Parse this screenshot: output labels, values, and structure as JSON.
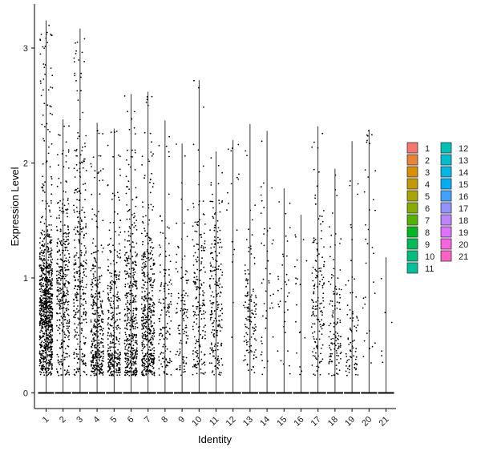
{
  "chart_data": {
    "type": "violin-jitter",
    "xlabel": "Identity",
    "ylabel": "Expression Level",
    "ylim": [
      -0.15,
      3.35
    ],
    "yticks": [
      0,
      1,
      2,
      3
    ],
    "grid": false,
    "legend_position": "right",
    "categories": [
      "1",
      "2",
      "3",
      "4",
      "5",
      "6",
      "7",
      "8",
      "9",
      "10",
      "11",
      "12",
      "13",
      "14",
      "15",
      "16",
      "17",
      "18",
      "19",
      "20",
      "21"
    ],
    "series": [
      {
        "label": "1",
        "color": "#F8766D",
        "max": 3.24,
        "points": 900,
        "median": 0.7,
        "spread": 0.35
      },
      {
        "label": "2",
        "color": "#EB8335",
        "max": 2.38,
        "points": 360,
        "median": 0.9,
        "spread": 0.45
      },
      {
        "label": "3",
        "color": "#DA8F00",
        "max": 3.17,
        "points": 330,
        "median": 1.0,
        "spread": 0.6
      },
      {
        "label": "4",
        "color": "#C49A00",
        "max": 2.35,
        "points": 360,
        "median": 0.5,
        "spread": 0.45
      },
      {
        "label": "5",
        "color": "#A9A400",
        "max": 2.3,
        "points": 320,
        "median": 0.45,
        "spread": 0.45
      },
      {
        "label": "6",
        "color": "#86AC00",
        "max": 2.6,
        "points": 420,
        "median": 0.6,
        "spread": 0.5
      },
      {
        "label": "7",
        "color": "#53B400",
        "max": 2.62,
        "points": 460,
        "median": 0.6,
        "spread": 0.45
      },
      {
        "label": "8",
        "color": "#00B81F",
        "max": 2.37,
        "points": 140,
        "median": 0.6,
        "spread": 0.4
      },
      {
        "label": "9",
        "color": "#00BC56",
        "max": 2.17,
        "points": 110,
        "median": 0.55,
        "spread": 0.4
      },
      {
        "label": "10",
        "color": "#00BF7D",
        "max": 2.72,
        "points": 190,
        "median": 0.7,
        "spread": 0.45
      },
      {
        "label": "11",
        "color": "#00C19C",
        "max": 2.1,
        "points": 210,
        "median": 0.8,
        "spread": 0.45
      },
      {
        "label": "12",
        "color": "#00C0B7",
        "max": 2.2,
        "points": 18,
        "median": 1.7,
        "spread": 0.5
      },
      {
        "label": "13",
        "color": "#00BDD0",
        "max": 2.34,
        "points": 130,
        "median": 0.7,
        "spread": 0.3
      },
      {
        "label": "14",
        "color": "#00B7E5",
        "max": 2.28,
        "points": 45,
        "median": 1.0,
        "spread": 0.5
      },
      {
        "label": "15",
        "color": "#00AEF6",
        "max": 1.78,
        "points": 35,
        "median": 0.8,
        "spread": 0.35
      },
      {
        "label": "16",
        "color": "#3EA3FF",
        "max": 1.55,
        "points": 20,
        "median": 0.8,
        "spread": 0.4
      },
      {
        "label": "17",
        "color": "#8F94FF",
        "max": 2.32,
        "points": 150,
        "median": 0.8,
        "spread": 0.4
      },
      {
        "label": "18",
        "color": "#BE84FF",
        "max": 1.95,
        "points": 120,
        "median": 0.6,
        "spread": 0.35
      },
      {
        "label": "19",
        "color": "#E070FF",
        "max": 2.19,
        "points": 75,
        "median": 0.5,
        "spread": 0.35
      },
      {
        "label": "20",
        "color": "#F564E3",
        "max": 2.29,
        "points": 35,
        "median": 1.3,
        "spread": 0.6
      },
      {
        "label": "21",
        "color": "#FF61C3",
        "max": 1.18,
        "points": 6,
        "median": 0.6,
        "spread": 0.3
      }
    ]
  }
}
